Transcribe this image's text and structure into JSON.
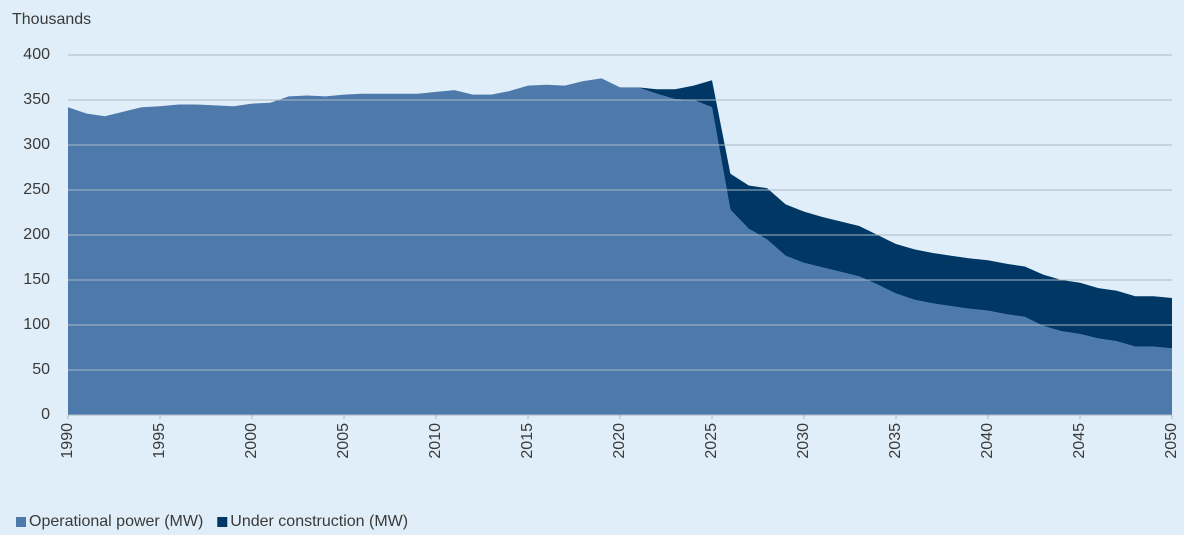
{
  "chart_data": {
    "type": "stacked_area",
    "y_unit_label": "Thousands",
    "x": [
      1990,
      1991,
      1992,
      1993,
      1994,
      1995,
      1996,
      1997,
      1998,
      1999,
      2000,
      2001,
      2002,
      2003,
      2004,
      2005,
      2006,
      2007,
      2008,
      2009,
      2010,
      2011,
      2012,
      2013,
      2014,
      2015,
      2016,
      2017,
      2018,
      2019,
      2020,
      2021,
      2022,
      2023,
      2024,
      2025,
      2026,
      2027,
      2028,
      2029,
      2030,
      2031,
      2032,
      2033,
      2034,
      2035,
      2036,
      2037,
      2038,
      2039,
      2040,
      2041,
      2042,
      2043,
      2044,
      2045,
      2046,
      2047,
      2048,
      2049,
      2050
    ],
    "series": [
      {
        "name": "Operational power (MW)",
        "color": "#4e7aab",
        "values": [
          342,
          335,
          332,
          337,
          342,
          343,
          345,
          345,
          344,
          343,
          346,
          347,
          354,
          355,
          354,
          356,
          357,
          357,
          357,
          357,
          359,
          361,
          356,
          356,
          360,
          366,
          367,
          366,
          371,
          374,
          364,
          364,
          357,
          351,
          350,
          342,
          228,
          207,
          195,
          177,
          169,
          164,
          159,
          154,
          145,
          135,
          128,
          124,
          121,
          118,
          116,
          112,
          109,
          99,
          93,
          90,
          85,
          82,
          76,
          76,
          74
        ]
      },
      {
        "name": "Under construction (MW)",
        "color": "#003764",
        "values": [
          0,
          0,
          0,
          0,
          0,
          0,
          0,
          0,
          0,
          0,
          0,
          0,
          0,
          0,
          0,
          0,
          0,
          0,
          0,
          0,
          0,
          0,
          0,
          0,
          0,
          0,
          0,
          0,
          0,
          0,
          0,
          0,
          5,
          11,
          16,
          30,
          40,
          48,
          57,
          57,
          57,
          56,
          56,
          56,
          55,
          55,
          56,
          56,
          56,
          56,
          56,
          56,
          56,
          57,
          57,
          57,
          56,
          56,
          56,
          56,
          56
        ]
      }
    ],
    "xlim": [
      1990,
      2050
    ],
    "xticks": [
      1990,
      1995,
      2000,
      2005,
      2010,
      2015,
      2020,
      2025,
      2030,
      2035,
      2040,
      2045,
      2050
    ],
    "ylim": [
      0,
      400
    ],
    "yticks": [
      0,
      50,
      100,
      150,
      200,
      250,
      300,
      350,
      400
    ],
    "grid": true,
    "legend": "bottom-left"
  }
}
